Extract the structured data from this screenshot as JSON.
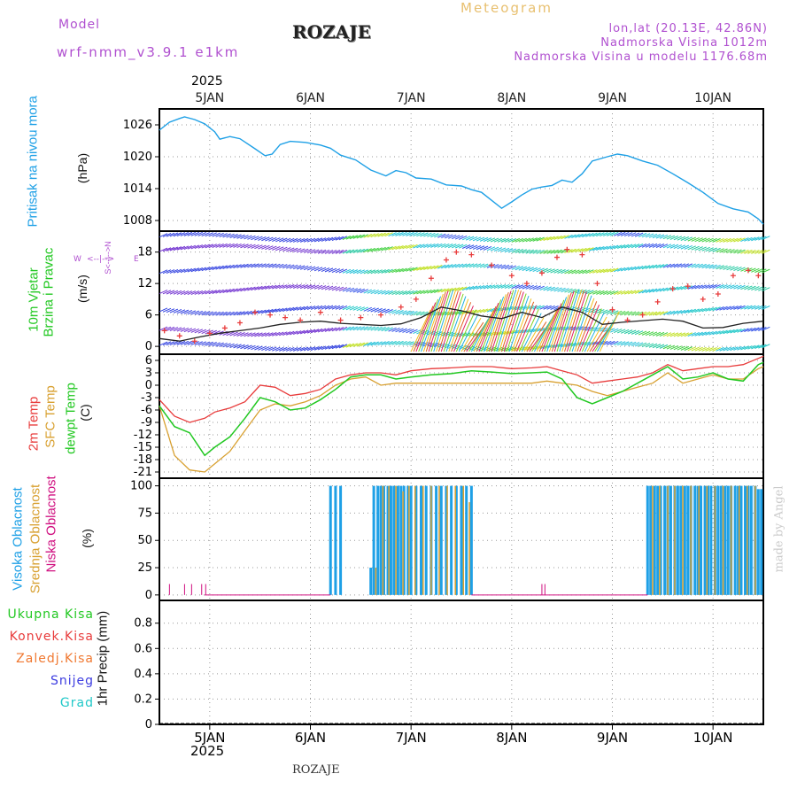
{
  "header": {
    "model_label": "Model",
    "model_name": "wrf-nmm_v3.9.1 e1km",
    "station": "ROZAJE",
    "title": "Meteogram",
    "coords": "lon,lat (20.13E, 42.86N)",
    "elevation": "Nadmorska Visina 1012m",
    "model_elevation": "Nadmorska Visina u modelu 1176.68m",
    "year_top": "2025",
    "year_bottom": "2025",
    "footer_station": "ROZAJE",
    "credit": "made by Angel"
  },
  "colors": {
    "pressure": "#1ea0e6",
    "temp2m": "#e83c3c",
    "sfc_temp": "#d8a030",
    "dewpoint": "#22c822",
    "cloud_high": "#1ea0e6",
    "cloud_mid": "#d8a030",
    "cloud_low": "#d01080",
    "wind_speed": "#222222",
    "gust_marker": "#e83c3c",
    "purple": "#b050d0"
  },
  "labels": {
    "pressure_name": "Pritisak na nivou mora",
    "pressure_unit": "(hPa)",
    "wind_name1": "10m Vjetar",
    "wind_name2": "Brzina i Pravac",
    "wind_unit": "(m/s)",
    "compass_w": "W",
    "compass_e": "E",
    "compass_ns": "S<--|-->N",
    "temp_2m": "2m Temp",
    "temp_sfc": "SFC Temp",
    "temp_dew": "dewpt Temp",
    "temp_unit": "(C)",
    "cloud_high": "Visoka Oblacnost",
    "cloud_mid": "Srednja Oblacnost",
    "cloud_low": "Niska Oblacnost",
    "cloud_unit": "(%)",
    "precip_unit": "1hr Precip (mm)",
    "precip_legend": [
      "Ukupna Kisa",
      "Konvek.Kisa",
      "Zaledj.Kisa",
      "Snijeg",
      "Grad"
    ],
    "precip_colors": [
      "#22c822",
      "#e83c3c",
      "#f07830",
      "#3c3ce0",
      "#20c8c8"
    ]
  },
  "chart_data": {
    "type": "line",
    "x_days": [
      "5JAN",
      "6JAN",
      "7JAN",
      "8JAN",
      "9JAN",
      "10JAN"
    ],
    "x_range_days": [
      4.5,
      10.5
    ],
    "panels": {
      "pressure": {
        "yticks": [
          1008,
          1014,
          1020,
          1026
        ],
        "ylim": [
          1006,
          1029
        ],
        "x": [
          4.5,
          4.6,
          4.7,
          4.75,
          4.85,
          4.95,
          5.05,
          5.1,
          5.2,
          5.3,
          5.45,
          5.55,
          5.62,
          5.7,
          5.8,
          5.95,
          6.1,
          6.2,
          6.3,
          6.45,
          6.6,
          6.75,
          6.85,
          6.95,
          7.05,
          7.2,
          7.35,
          7.5,
          7.6,
          7.7,
          7.8,
          7.9,
          8.0,
          8.1,
          8.2,
          8.3,
          8.4,
          8.5,
          8.6,
          8.7,
          8.8,
          8.95,
          9.05,
          9.15,
          9.3,
          9.45,
          9.6,
          9.75,
          9.9,
          10.05,
          10.2,
          10.35,
          10.45,
          10.5
        ],
        "y": [
          1025,
          1026.5,
          1027.2,
          1027.5,
          1027,
          1026.2,
          1024.7,
          1023.3,
          1023.8,
          1023.4,
          1021.5,
          1020.2,
          1020.5,
          1022.3,
          1022.9,
          1022.7,
          1022.2,
          1021.6,
          1020.3,
          1019.4,
          1017.5,
          1016.4,
          1017.4,
          1017.0,
          1016.0,
          1015.8,
          1014.7,
          1014.5,
          1013.8,
          1013.3,
          1011.8,
          1010.3,
          1011.5,
          1012.8,
          1013.9,
          1014.3,
          1014.6,
          1015.6,
          1015.2,
          1016.8,
          1019.2,
          1020.0,
          1020.5,
          1020.2,
          1019.2,
          1018.4,
          1016.8,
          1015.1,
          1013.3,
          1011.2,
          1010.2,
          1009.6,
          1008.3,
          1007.3
        ]
      },
      "wind": {
        "yticks": [
          0,
          6,
          12,
          18
        ],
        "ylim": [
          -1.5,
          22
        ],
        "speed_x": [
          4.5,
          4.7,
          4.9,
          5.1,
          5.3,
          5.5,
          5.7,
          5.9,
          6.1,
          6.3,
          6.5,
          6.7,
          6.9,
          7.1,
          7.3,
          7.5,
          7.7,
          7.9,
          8.1,
          8.3,
          8.5,
          8.7,
          8.9,
          9.1,
          9.3,
          9.5,
          9.7,
          9.9,
          10.1,
          10.3,
          10.5
        ],
        "speed_y": [
          1.5,
          1.0,
          1.8,
          2.5,
          3.0,
          3.5,
          4.2,
          4.6,
          4.8,
          4.4,
          4.2,
          4.0,
          4.3,
          5.5,
          7.5,
          6.8,
          5.8,
          5.3,
          6.5,
          5.5,
          7.5,
          6.5,
          4.2,
          4.6,
          4.9,
          5.2,
          4.8,
          3.5,
          3.6,
          4.4,
          4.8
        ],
        "gust_x": [
          4.55,
          4.7,
          4.85,
          5.0,
          5.15,
          5.3,
          5.45,
          5.6,
          5.75,
          5.9,
          6.1,
          6.3,
          6.5,
          6.7,
          6.9,
          7.05,
          7.2,
          7.35,
          7.45,
          7.6,
          7.8,
          8.0,
          8.15,
          8.3,
          8.45,
          8.55,
          8.7,
          8.85,
          9.0,
          9.15,
          9.3,
          9.45,
          9.6,
          9.75,
          9.9,
          10.05,
          10.2,
          10.35,
          10.45
        ],
        "gust_y": [
          3.0,
          2.0,
          1.0,
          2.5,
          3.5,
          4.5,
          6.5,
          6.0,
          5.5,
          5.0,
          6.5,
          5.0,
          5.5,
          6.0,
          7.5,
          9.0,
          13.0,
          16.5,
          18.0,
          17.5,
          15.5,
          13.5,
          12.0,
          14.0,
          17.0,
          18.5,
          17.5,
          12.0,
          7.0,
          5.0,
          6.0,
          8.5,
          11.0,
          11.5,
          9.0,
          10.0,
          13.5,
          14.5,
          13.5
        ]
      },
      "temperature": {
        "yticks": [
          -21,
          -18,
          -15,
          -12,
          -9,
          -6,
          -3,
          0,
          3,
          6
        ],
        "ylim": [
          -22.5,
          7.5
        ],
        "x": [
          4.5,
          4.65,
          4.8,
          4.95,
          5.05,
          5.2,
          5.35,
          5.5,
          5.65,
          5.8,
          5.95,
          6.1,
          6.25,
          6.4,
          6.55,
          6.7,
          6.85,
          7.0,
          7.2,
          7.4,
          7.6,
          7.8,
          8.0,
          8.2,
          8.35,
          8.5,
          8.65,
          8.8,
          8.95,
          9.1,
          9.25,
          9.4,
          9.55,
          9.7,
          9.85,
          10.0,
          10.15,
          10.3,
          10.45,
          10.5
        ],
        "temp2m": [
          -3.5,
          -7.5,
          -9.0,
          -8.0,
          -6.5,
          -5.5,
          -4.0,
          0.0,
          -0.5,
          -2.5,
          -2.0,
          -1.0,
          1.5,
          2.5,
          3.0,
          3.0,
          2.5,
          3.5,
          4.0,
          4.2,
          4.5,
          4.5,
          4.0,
          4.2,
          4.5,
          3.5,
          2.5,
          0.5,
          1.0,
          1.5,
          2.0,
          3.0,
          5.0,
          3.5,
          4.0,
          4.5,
          4.5,
          5.0,
          6.5,
          7.0
        ],
        "sfc": [
          -5.0,
          -17.0,
          -20.5,
          -21.0,
          -19.0,
          -16.0,
          -11.0,
          -6.0,
          -4.5,
          -5.0,
          -4.0,
          -2.5,
          0.0,
          1.5,
          2.0,
          0.0,
          0.5,
          0.5,
          0.5,
          0.5,
          0.5,
          0.5,
          0.5,
          0.5,
          1.0,
          0.5,
          0.0,
          -1.5,
          -2.5,
          -1.5,
          -0.5,
          0.5,
          3.0,
          0.5,
          1.5,
          2.5,
          1.5,
          1.5,
          4.0,
          4.5
        ],
        "dewpoint": [
          -5.0,
          -10.0,
          -11.5,
          -17.0,
          -15.0,
          -12.5,
          -8.0,
          -3.0,
          -4.0,
          -6.0,
          -5.5,
          -3.5,
          -1.0,
          2.0,
          2.5,
          2.5,
          1.5,
          2.0,
          2.5,
          2.8,
          3.5,
          3.2,
          2.8,
          3.0,
          3.2,
          1.5,
          -3.0,
          -4.5,
          -3.0,
          -1.5,
          0.5,
          2.5,
          4.5,
          1.5,
          2.0,
          3.0,
          1.5,
          1.0,
          5.0,
          5.5
        ]
      },
      "clouds": {
        "yticks": [
          0,
          25,
          50,
          75,
          100
        ],
        "ylim": [
          -5,
          107
        ],
        "high_bars_x": [
          6.2,
          6.25,
          6.3,
          6.6,
          6.63,
          6.67,
          6.7,
          6.73,
          6.77,
          6.8,
          6.83,
          6.87,
          6.9,
          6.93,
          6.97,
          7.0,
          7.05,
          7.1,
          7.15,
          7.2,
          7.25,
          7.3,
          7.35,
          7.4,
          7.45,
          7.5,
          7.55,
          7.6,
          9.35,
          9.38,
          9.42,
          9.45,
          9.48,
          9.52,
          9.55,
          9.58,
          9.62,
          9.65,
          9.68,
          9.72,
          9.75,
          9.78,
          9.82,
          9.85,
          9.88,
          9.92,
          9.95,
          9.98,
          10.02,
          10.05,
          10.08,
          10.12,
          10.15,
          10.18,
          10.22,
          10.25,
          10.28,
          10.32,
          10.35,
          10.38,
          10.42,
          10.45,
          10.48
        ],
        "high_bars_y": [
          100,
          100,
          100,
          25,
          100,
          100,
          100,
          100,
          100,
          100,
          100,
          100,
          100,
          100,
          100,
          100,
          100,
          100,
          100,
          100,
          100,
          100,
          100,
          100,
          100,
          100,
          100,
          100,
          100,
          100,
          100,
          100,
          100,
          100,
          100,
          100,
          100,
          100,
          100,
          100,
          100,
          100,
          100,
          100,
          100,
          100,
          100,
          100,
          100,
          100,
          100,
          100,
          100,
          100,
          100,
          100,
          100,
          100,
          100,
          100,
          100,
          97,
          97
        ],
        "mid_bars_x": [
          6.65,
          6.72,
          6.78,
          6.85,
          6.92,
          6.98,
          7.04,
          7.12,
          7.2,
          7.28,
          7.36,
          7.44,
          7.52,
          7.58,
          9.4,
          9.47,
          9.55,
          9.62,
          9.7,
          9.78,
          9.86,
          9.94,
          10.02,
          10.1,
          10.18,
          10.26,
          10.34,
          10.42
        ],
        "mid_bars_y": [
          25,
          100,
          100,
          100,
          95,
          100,
          100,
          100,
          100,
          100,
          100,
          100,
          100,
          85,
          100,
          100,
          100,
          100,
          100,
          100,
          100,
          100,
          100,
          100,
          100,
          100,
          100,
          100
        ],
        "low_bars_x": [
          4.6,
          4.75,
          4.82,
          4.92,
          4.96,
          8.3,
          8.33
        ],
        "low_bars_y": [
          10,
          10,
          10,
          10,
          10,
          10,
          10
        ]
      },
      "precip": {
        "yticks": [
          0,
          0.2,
          0.4,
          0.6,
          0.8
        ],
        "ylim": [
          0,
          0.98
        ]
      }
    }
  }
}
